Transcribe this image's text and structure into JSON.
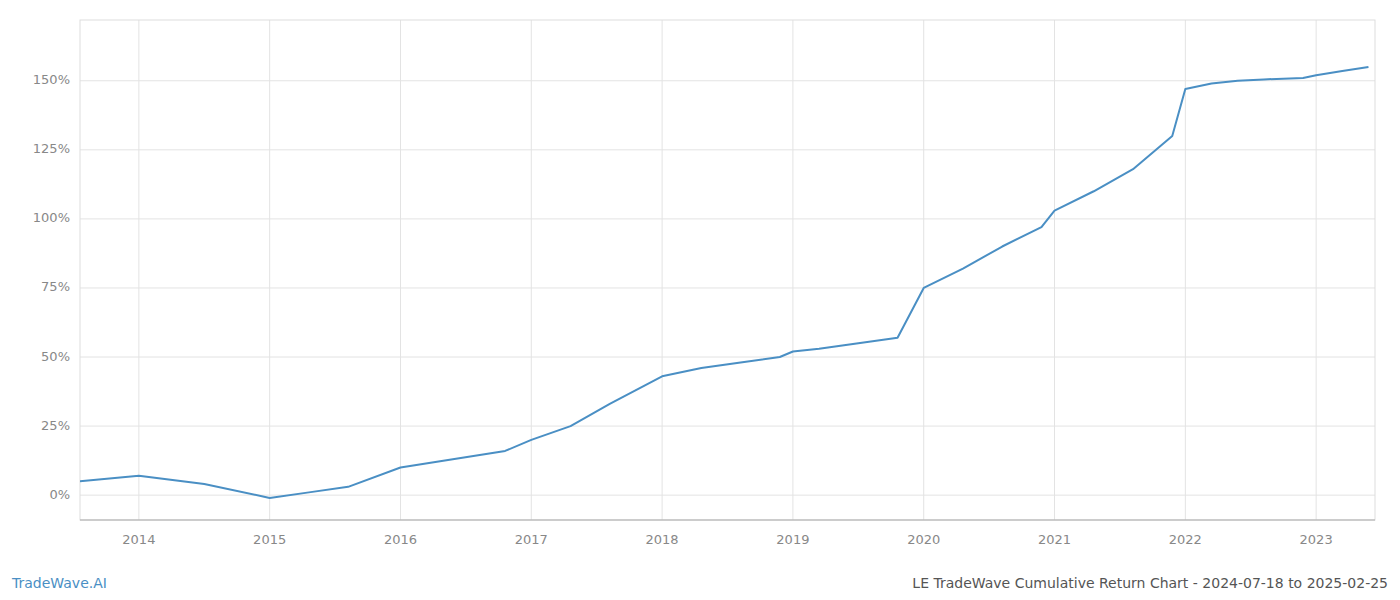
{
  "chart_data": {
    "type": "line",
    "title": "LE TradeWave Cumulative Return Chart - 2024-07-18 to 2025-02-25",
    "annotations": [
      "TradeWave.AI"
    ],
    "x": [
      2013.55,
      2014.0,
      2014.5,
      2015.0,
      2015.3,
      2015.6,
      2016.0,
      2016.4,
      2016.8,
      2017.0,
      2017.3,
      2017.6,
      2018.0,
      2018.3,
      2018.6,
      2018.9,
      2019.0,
      2019.2,
      2019.5,
      2019.8,
      2020.0,
      2020.3,
      2020.6,
      2020.9,
      2021.0,
      2021.3,
      2021.6,
      2021.9,
      2022.0,
      2022.2,
      2022.4,
      2022.6,
      2022.9,
      2023.0,
      2023.2,
      2023.4
    ],
    "values": [
      0.05,
      0.07,
      0.04,
      -0.01,
      0.01,
      0.03,
      0.1,
      0.13,
      0.16,
      0.2,
      0.25,
      0.33,
      0.43,
      0.46,
      0.48,
      0.5,
      0.52,
      0.53,
      0.55,
      0.57,
      0.75,
      0.82,
      0.9,
      0.97,
      1.03,
      1.1,
      1.18,
      1.3,
      1.47,
      1.49,
      1.5,
      1.505,
      1.51,
      1.52,
      1.535,
      1.55
    ],
    "color": "#4a8fc4",
    "xlim": [
      2013.55,
      2023.45
    ],
    "ylim": [
      -0.09,
      1.72
    ],
    "xticks": [
      2014,
      2015,
      2016,
      2017,
      2018,
      2019,
      2020,
      2021,
      2022,
      2023
    ],
    "yticks": [
      {
        "value": 0.0,
        "label": "0%"
      },
      {
        "value": 0.25,
        "label": "25%"
      },
      {
        "value": 0.5,
        "label": "50%"
      },
      {
        "value": 0.75,
        "label": "75%"
      },
      {
        "value": 1.0,
        "label": "100%"
      },
      {
        "value": 1.25,
        "label": "125%"
      },
      {
        "value": 1.5,
        "label": "150%"
      }
    ],
    "grid": true
  }
}
